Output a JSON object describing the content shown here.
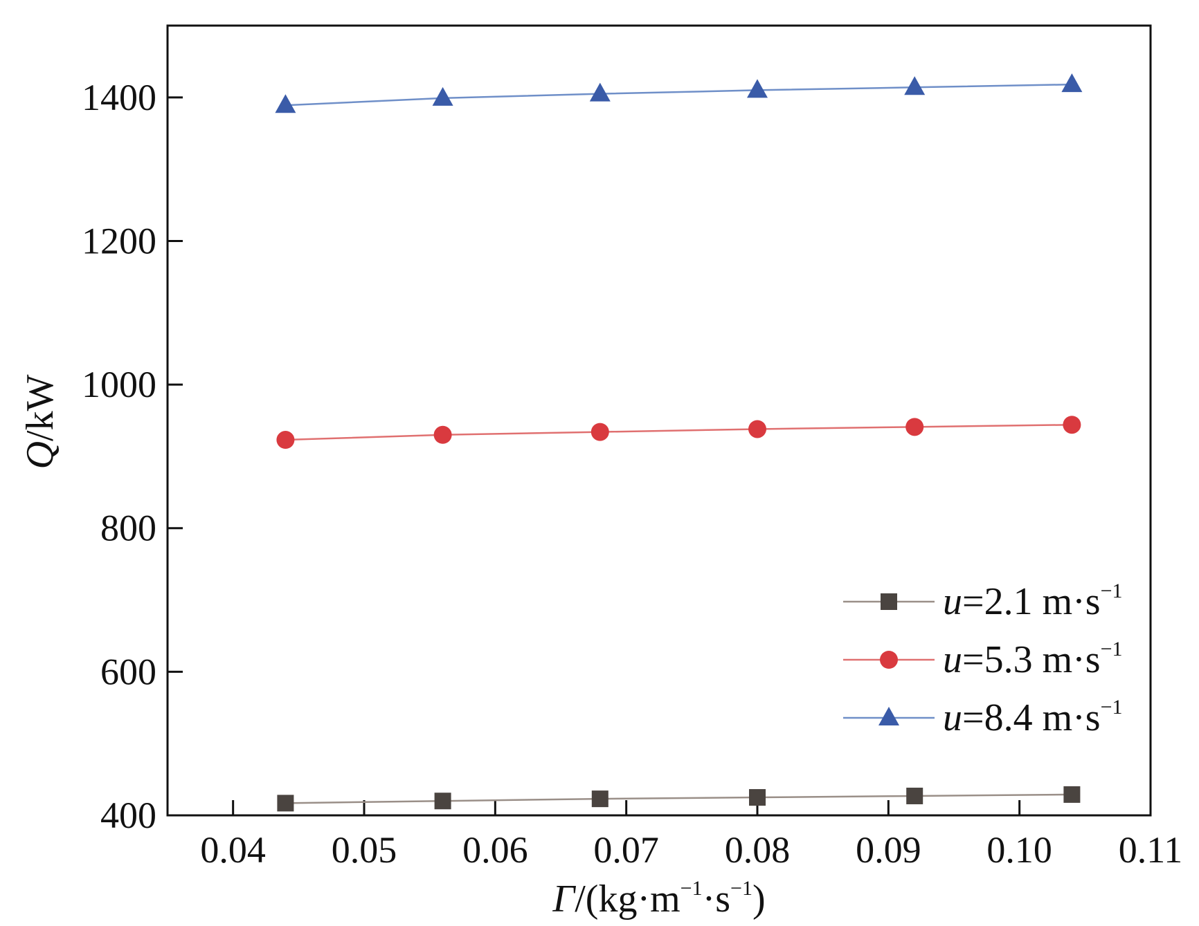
{
  "chart_data": {
    "type": "line",
    "xlabel": {
      "symbol": "Γ",
      "unit_pre": "/(kg·m",
      "sup1": "−1",
      "mid": "·s",
      "sup2": "−1",
      "unit_post": ")"
    },
    "ylabel": {
      "symbol": "Q",
      "unit": "/kW"
    },
    "xlim": [
      0.035,
      0.11
    ],
    "ylim": [
      400,
      1500
    ],
    "xticks": [
      0.04,
      0.05,
      0.06,
      0.07,
      0.08,
      0.09,
      0.1,
      0.11
    ],
    "xtick_labels": [
      "0.04",
      "0.05",
      "0.06",
      "0.07",
      "0.08",
      "0.09",
      "0.10",
      "0.11"
    ],
    "yticks": [
      400,
      600,
      800,
      1000,
      1200,
      1400
    ],
    "ytick_labels": [
      "400",
      "600",
      "800",
      "1000",
      "1200",
      "1400"
    ],
    "grid": false,
    "legend_position": "lower-right",
    "x": [
      0.044,
      0.056,
      0.068,
      0.08,
      0.092,
      0.104
    ],
    "series": [
      {
        "name_var": "u",
        "name_rest": "=2.1 m·s",
        "name_sup": "−1",
        "marker": "square",
        "color": "#4a4440",
        "line_color": "#9a8f88",
        "values": [
          417,
          420,
          423,
          425,
          427,
          429
        ]
      },
      {
        "name_var": "u",
        "name_rest": "=5.3 m·s",
        "name_sup": "−1",
        "marker": "circle",
        "color": "#d93a3f",
        "line_color": "#e07070",
        "values": [
          923,
          930,
          934,
          938,
          941,
          944
        ]
      },
      {
        "name_var": "u",
        "name_rest": "=8.4 m·s",
        "name_sup": "−1",
        "marker": "triangle",
        "color": "#3a5ba8",
        "line_color": "#6f8fc8",
        "values": [
          1389,
          1399,
          1405,
          1410,
          1414,
          1418
        ]
      }
    ]
  }
}
